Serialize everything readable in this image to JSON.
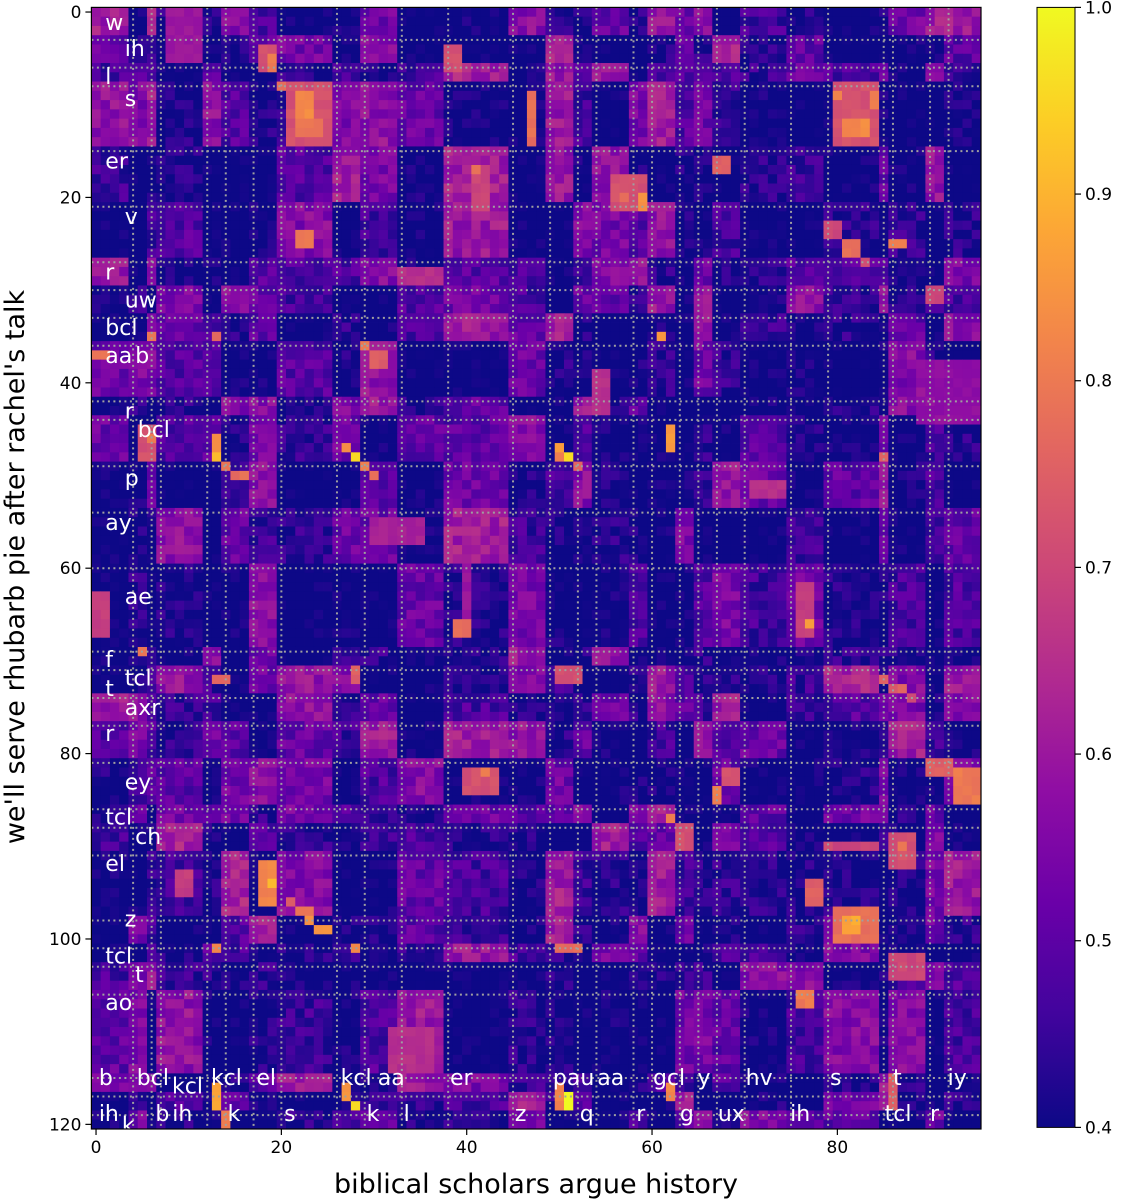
{
  "chart_data": {
    "type": "heatmap",
    "title": "",
    "xlabel": "biblical scholars argue history",
    "ylabel": "we'll serve rhubarb pie after rachel's talk",
    "n_cols": 96,
    "n_rows": 121,
    "xlim": [
      0,
      95
    ],
    "ylim": [
      120,
      0
    ],
    "xticks": [
      0,
      20,
      40,
      60,
      80
    ],
    "yticks": [
      0,
      20,
      40,
      60,
      80,
      100,
      120
    ],
    "colormap": "plasma",
    "colorbar": {
      "range": [
        0.4,
        1.0
      ],
      "ticks": [
        "0.4",
        "0.5",
        "0.6",
        "0.7",
        "0.8",
        "0.9",
        "1.0"
      ],
      "position": "right"
    },
    "grid": {
      "style": "dotted",
      "color": "#a0a0a0",
      "col_boundaries": [
        4,
        6,
        7,
        12,
        14,
        17,
        20,
        26,
        29,
        33,
        38,
        45,
        49,
        52,
        54,
        58,
        60,
        63,
        65,
        67,
        70,
        75,
        79,
        85,
        86,
        90,
        92
      ],
      "row_boundaries": [
        3,
        6,
        8,
        15,
        21,
        27,
        30,
        33,
        36,
        42,
        44,
        49,
        54,
        60,
        69,
        71,
        74,
        77,
        81,
        86,
        88,
        91,
        98,
        101,
        103,
        106,
        115,
        117,
        119
      ]
    },
    "y_phone_labels": [
      {
        "text": "w",
        "row": 1.1,
        "col": 1.5
      },
      {
        "text": "ih",
        "row": 3.9,
        "col": 3.6
      },
      {
        "text": "l",
        "row": 6.9,
        "col": 1.5
      },
      {
        "text": "s",
        "row": 9.3,
        "col": 3.6
      },
      {
        "text": "er",
        "row": 16,
        "col": 1.5
      },
      {
        "text": "v",
        "row": 22,
        "col": 3.6
      },
      {
        "text": "r",
        "row": 28,
        "col": 1.5
      },
      {
        "text": "uw",
        "row": 31,
        "col": 3.6
      },
      {
        "text": "bcl",
        "row": 34,
        "col": 1.5
      },
      {
        "text": "aa",
        "row": 37,
        "col": 1.5
      },
      {
        "text": "b",
        "row": 37,
        "col": 3.6
      },
      {
        "text": "r",
        "row": 43,
        "col": 3.6
      },
      {
        "text": "bcl",
        "row": 45,
        "col": 1.5
      },
      {
        "text": "p",
        "row": 50.2,
        "col": 3.6
      },
      {
        "text": "ay",
        "row": 55,
        "col": 1.5
      },
      {
        "text": "ae",
        "row": 63,
        "col": 3.6
      },
      {
        "text": "f",
        "row": 69.8,
        "col": 1.5
      },
      {
        "text": "tcl",
        "row": 71.8,
        "col": 3.6
      },
      {
        "text": "t",
        "row": 72.9,
        "col": 1.5
      },
      {
        "text": "axr",
        "row": 75,
        "col": 3.6
      },
      {
        "text": "r",
        "row": 77.8,
        "col": 1.5
      },
      {
        "text": "ey",
        "row": 83,
        "col": 3.6
      },
      {
        "text": "tcl",
        "row": 86.8,
        "col": 1.5
      },
      {
        "text": "ch",
        "row": 88.9,
        "col": 3.6
      },
      {
        "text": "el",
        "row": 91.8,
        "col": 1.5
      },
      {
        "text": "z",
        "row": 97.8,
        "col": 3.6
      },
      {
        "text": "tcl",
        "row": 101.8,
        "col": 1.5
      },
      {
        "text": "t",
        "row": 103.8,
        "col": 3.6
      },
      {
        "text": "ao",
        "row": 106.8,
        "col": 1.5
      }
    ],
    "x_phone_labels": [
      {
        "text": "b",
        "row": 114.9,
        "col": 0.8
      },
      {
        "text": "bcl",
        "row": 114.9,
        "col": 4.9
      },
      {
        "text": "kcl",
        "row": 114.9,
        "col": 12.9
      },
      {
        "text": "el",
        "row": 114.9,
        "col": 17.8
      },
      {
        "text": "kcl",
        "row": 114.9,
        "col": 26.9
      },
      {
        "text": "aa",
        "row": 114.9,
        "col": 30.9
      },
      {
        "text": "er",
        "row": 114.9,
        "col": 38.7
      },
      {
        "text": "pau",
        "row": 114.9,
        "col": 49.8
      },
      {
        "text": "aa",
        "row": 114.9,
        "col": 54.0
      },
      {
        "text": "gcl",
        "row": 114.9,
        "col": 60.6
      },
      {
        "text": "y",
        "row": 114.9,
        "col": 65.4
      },
      {
        "text": "hv",
        "row": 114.9,
        "col": 70.6
      },
      {
        "text": "s",
        "row": 114.9,
        "col": 79.7
      },
      {
        "text": "t",
        "row": 114.9,
        "col": 86.5
      },
      {
        "text": "iy",
        "row": 114.9,
        "col": 92.4
      },
      {
        "text": "kcl",
        "row": 115.8,
        "col": 3.7
      },
      {
        "text": "ih",
        "row": 118.8,
        "col": 0.8
      },
      {
        "text": "b",
        "row": 118.8,
        "col": 6.9
      },
      {
        "text": "ih",
        "row": 118.8,
        "col": 8.2
      },
      {
        "text": "k",
        "row": 118.8,
        "col": 14.7
      },
      {
        "text": "s",
        "row": 118.8,
        "col": 20.8
      },
      {
        "text": "k",
        "row": 118.8,
        "col": 29.7
      },
      {
        "text": "l",
        "row": 118.8,
        "col": 33.7
      },
      {
        "text": "z",
        "row": 118.8,
        "col": 45.7
      },
      {
        "text": "q",
        "row": 118.8,
        "col": 52.7
      },
      {
        "text": "r",
        "row": 118.8,
        "col": 58.8
      },
      {
        "text": "g",
        "row": 118.8,
        "col": 63.5
      },
      {
        "text": "ux",
        "row": 118.8,
        "col": 67.6
      },
      {
        "text": "ih",
        "row": 118.8,
        "col": 75.4
      },
      {
        "text": "tcl",
        "row": 118.8,
        "col": 85.6
      },
      {
        "text": "r",
        "row": 118.8,
        "col": 90.5
      },
      {
        "text": "k",
        "row": 120.0,
        "col": 1.2
      }
    ],
    "background_range": [
      0.4,
      0.6
    ],
    "highlights": [
      [
        8,
        14,
        21,
        25,
        0.72
      ],
      [
        9,
        11,
        22,
        23,
        0.83
      ],
      [
        12,
        13,
        22,
        24,
        0.8
      ],
      [
        4,
        6,
        18,
        19,
        0.72
      ],
      [
        5,
        6,
        19,
        19,
        0.8
      ],
      [
        8,
        8,
        20,
        20,
        0.78
      ],
      [
        0,
        5,
        8,
        11,
        0.6
      ],
      [
        4,
        6,
        38,
        39,
        0.72
      ],
      [
        9,
        14,
        47,
        47,
        0.78
      ],
      [
        17,
        21,
        41,
        42,
        0.7
      ],
      [
        17,
        17,
        41,
        41,
        0.78
      ],
      [
        18,
        21,
        56,
        59,
        0.72
      ],
      [
        20,
        21,
        59,
        59,
        0.85
      ],
      [
        20,
        20,
        57,
        57,
        0.78
      ],
      [
        16,
        17,
        67,
        68,
        0.75
      ],
      [
        8,
        14,
        80,
        84,
        0.72
      ],
      [
        9,
        9,
        80,
        80,
        0.83
      ],
      [
        12,
        13,
        81,
        83,
        0.83
      ],
      [
        9,
        10,
        84,
        84,
        0.8
      ],
      [
        23,
        24,
        79,
        80,
        0.7
      ],
      [
        25,
        26,
        81,
        82,
        0.78
      ],
      [
        27,
        27,
        83,
        83,
        0.7
      ],
      [
        25,
        25,
        86,
        87,
        0.8
      ],
      [
        30,
        31,
        90,
        91,
        0.7
      ],
      [
        35,
        35,
        61,
        61,
        0.85
      ],
      [
        35,
        35,
        13,
        13,
        0.78
      ],
      [
        35,
        35,
        6,
        6,
        0.8
      ],
      [
        36,
        36,
        29,
        29,
        0.8
      ],
      [
        37,
        38,
        30,
        31,
        0.75
      ],
      [
        37,
        37,
        0,
        1,
        0.78
      ],
      [
        24,
        25,
        22,
        23,
        0.8
      ],
      [
        28,
        29,
        33,
        37,
        0.65
      ],
      [
        45,
        48,
        5,
        6,
        0.72
      ],
      [
        46,
        46,
        6,
        6,
        0.8
      ],
      [
        46,
        48,
        13,
        13,
        0.85
      ],
      [
        48,
        48,
        13,
        13,
        0.92
      ],
      [
        49,
        49,
        14,
        14,
        0.8
      ],
      [
        50,
        50,
        15,
        16,
        0.78
      ],
      [
        47,
        47,
        27,
        27,
        0.85
      ],
      [
        48,
        48,
        28,
        28,
        0.95
      ],
      [
        49,
        49,
        29,
        29,
        0.8
      ],
      [
        50,
        50,
        30,
        30,
        0.78
      ],
      [
        47,
        47,
        50,
        50,
        0.85
      ],
      [
        48,
        48,
        51,
        51,
        0.95
      ],
      [
        48,
        48,
        50,
        50,
        0.82
      ],
      [
        49,
        49,
        52,
        52,
        0.75
      ],
      [
        45,
        47,
        62,
        62,
        0.85
      ],
      [
        48,
        48,
        85,
        85,
        0.75
      ],
      [
        39,
        43,
        54,
        55,
        0.65
      ],
      [
        38,
        44,
        89,
        95,
        0.58
      ],
      [
        51,
        52,
        71,
        74,
        0.65
      ],
      [
        55,
        57,
        30,
        35,
        0.62
      ],
      [
        56,
        67,
        40,
        40,
        0.6
      ],
      [
        66,
        67,
        39,
        40,
        0.78
      ],
      [
        63,
        67,
        0,
        1,
        0.68
      ],
      [
        69,
        69,
        5,
        5,
        0.8
      ],
      [
        72,
        72,
        13,
        14,
        0.75
      ],
      [
        71,
        72,
        28,
        28,
        0.75
      ],
      [
        62,
        67,
        76,
        77,
        0.68
      ],
      [
        66,
        66,
        77,
        77,
        0.85
      ],
      [
        71,
        72,
        50,
        52,
        0.72
      ],
      [
        72,
        72,
        85,
        85,
        0.75
      ],
      [
        73,
        73,
        86,
        87,
        0.75
      ],
      [
        74,
        74,
        88,
        88,
        0.72
      ],
      [
        81,
        82,
        90,
        92,
        0.75
      ],
      [
        82,
        85,
        93,
        95,
        0.8
      ],
      [
        82,
        83,
        68,
        69,
        0.72
      ],
      [
        84,
        85,
        67,
        67,
        0.8
      ],
      [
        82,
        84,
        40,
        43,
        0.72
      ],
      [
        82,
        82,
        42,
        42,
        0.8
      ],
      [
        87,
        87,
        62,
        62,
        0.8
      ],
      [
        88,
        90,
        63,
        64,
        0.72
      ],
      [
        90,
        90,
        79,
        84,
        0.7
      ],
      [
        89,
        92,
        86,
        88,
        0.72
      ],
      [
        90,
        90,
        87,
        87,
        0.8
      ],
      [
        92,
        96,
        18,
        19,
        0.82
      ],
      [
        94,
        94,
        19,
        19,
        0.92
      ],
      [
        93,
        95,
        9,
        10,
        0.68
      ],
      [
        96,
        96,
        21,
        21,
        0.75
      ],
      [
        97,
        97,
        22,
        23,
        0.78
      ],
      [
        98,
        98,
        23,
        23,
        0.85
      ],
      [
        99,
        99,
        24,
        25,
        0.85
      ],
      [
        101,
        101,
        13,
        13,
        0.82
      ],
      [
        101,
        101,
        28,
        28,
        0.82
      ],
      [
        101,
        101,
        50,
        52,
        0.78
      ],
      [
        94,
        96,
        77,
        78,
        0.75
      ],
      [
        97,
        100,
        80,
        84,
        0.78
      ],
      [
        98,
        99,
        81,
        82,
        0.88
      ],
      [
        106,
        107,
        76,
        77,
        0.8
      ],
      [
        102,
        104,
        86,
        89,
        0.7
      ],
      [
        110,
        114,
        32,
        36,
        0.65
      ],
      [
        116,
        118,
        13,
        13,
        0.88
      ],
      [
        119,
        120,
        14,
        14,
        0.8
      ],
      [
        116,
        117,
        27,
        27,
        0.85
      ],
      [
        118,
        118,
        28,
        28,
        0.97
      ],
      [
        116,
        118,
        50,
        50,
        0.82
      ],
      [
        117,
        118,
        51,
        51,
        1.0
      ],
      [
        116,
        117,
        62,
        62,
        0.82
      ],
      [
        115,
        118,
        86,
        86,
        0.75
      ]
    ]
  }
}
